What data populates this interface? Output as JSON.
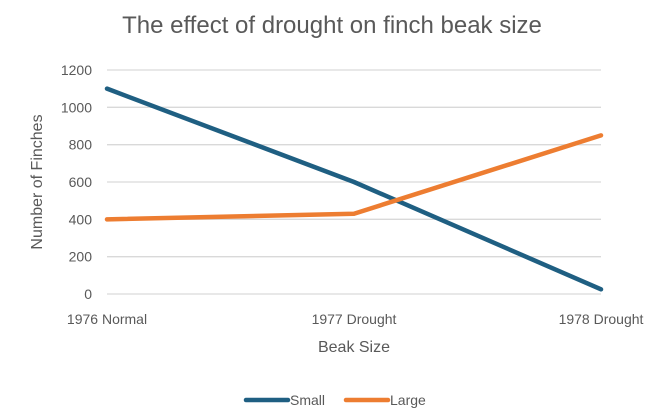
{
  "chart_data": {
    "type": "line",
    "title": "The effect of drought on finch beak size",
    "xlabel": "Beak Size",
    "ylabel": "Number of Finches",
    "categories": [
      "1976 Normal",
      "1977 Drought",
      "1978 Drought"
    ],
    "series": [
      {
        "name": "Small",
        "color": "#1F5F82",
        "values": [
          1100,
          600,
          25
        ]
      },
      {
        "name": "Large",
        "color": "#ED7D31",
        "values": [
          400,
          430,
          850
        ]
      }
    ],
    "ylim": [
      0,
      1200
    ],
    "yticks": [
      0,
      200,
      400,
      600,
      800,
      1000,
      1200
    ],
    "grid": true,
    "gridline_color": "#D9D9D9",
    "legend": "bottom"
  }
}
